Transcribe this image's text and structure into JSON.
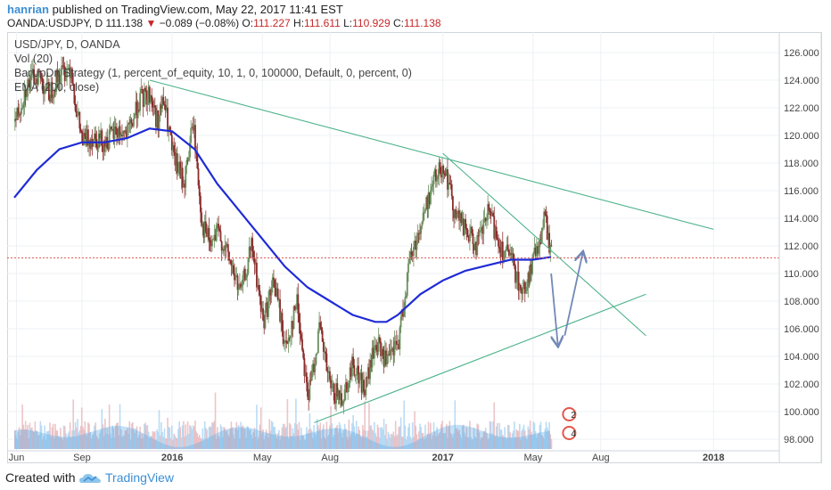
{
  "header": {
    "author": "hanrian",
    "published_text": "published on TradingView.com, May 22, 2017 11:41 EST",
    "symbol": "OANDA:USDJPY, D",
    "last": "111.138",
    "change_arrow": "▼",
    "change": "−0.089 (−0.08%)",
    "o_label": "O:",
    "o_value": "111.227",
    "h_label": "H:",
    "h_value": "111.611",
    "l_label": "L:",
    "l_value": "110.929",
    "c_label": "C:",
    "c_value": "111.138"
  },
  "footer": {
    "created_with": "Created with",
    "brand": "TradingView",
    "brand_icon": "tradingview-cloud-icon"
  },
  "chart_data": {
    "type": "candlestick",
    "legend": [
      "USD/JPY, D, OANDA",
      "Vol (20)",
      "BarUpDn Strategy (1, percent_of_equity, 10, 1, 0, 100000, Default, 0, percent, 0)",
      "EMA (200, close)"
    ],
    "y_axis": {
      "min": 97,
      "max": 127,
      "ticks": [
        "98.000",
        "100.000",
        "102.000",
        "104.000",
        "106.000",
        "108.000",
        "110.000",
        "112.000",
        "114.000",
        "116.000",
        "118.000",
        "120.000",
        "122.000",
        "124.000",
        "126.000"
      ]
    },
    "x_axis": {
      "start_month": 6,
      "end_month": 31,
      "ticks": [
        {
          "label": "Jun",
          "month": 6.1
        },
        {
          "label": "Sep",
          "month": 9
        },
        {
          "label": "2016",
          "month": 13
        },
        {
          "label": "May",
          "month": 17
        },
        {
          "label": "Aug",
          "month": 20
        },
        {
          "label": "2017",
          "month": 25
        },
        {
          "label": "May",
          "month": 29
        },
        {
          "label": "Aug",
          "month": 32
        },
        {
          "label": "2018",
          "month": 37
        }
      ]
    },
    "last_price": 111.138,
    "last_price_label": "111.138",
    "price_path": [
      [
        6.0,
        121.0
      ],
      [
        6.5,
        123.5
      ],
      [
        7.0,
        124.5
      ],
      [
        7.5,
        123.0
      ],
      [
        8.0,
        124.5
      ],
      [
        8.5,
        125.0
      ],
      [
        8.7,
        122.0
      ],
      [
        9.0,
        119.5
      ],
      [
        9.5,
        120.0
      ],
      [
        10.0,
        119.5
      ],
      [
        10.5,
        120.3
      ],
      [
        11.0,
        120.0
      ],
      [
        11.5,
        122.5
      ],
      [
        12.0,
        123.0
      ],
      [
        12.3,
        121.0
      ],
      [
        12.6,
        122.5
      ],
      [
        13.0,
        118.5
      ],
      [
        13.5,
        116.5
      ],
      [
        13.9,
        121.0
      ],
      [
        14.3,
        113.5
      ],
      [
        14.7,
        112.0
      ],
      [
        15.0,
        113.0
      ],
      [
        15.5,
        111.0
      ],
      [
        16.0,
        108.5
      ],
      [
        16.5,
        112.0
      ],
      [
        17.0,
        106.5
      ],
      [
        17.5,
        109.5
      ],
      [
        18.0,
        104.5
      ],
      [
        18.5,
        108.0
      ],
      [
        19.0,
        101.0
      ],
      [
        19.5,
        106.0
      ],
      [
        20.0,
        101.5
      ],
      [
        20.5,
        101.0
      ],
      [
        21.0,
        103.5
      ],
      [
        21.5,
        101.5
      ],
      [
        22.0,
        105.0
      ],
      [
        22.5,
        103.5
      ],
      [
        23.0,
        105.0
      ],
      [
        23.5,
        111.0
      ],
      [
        24.0,
        113.5
      ],
      [
        24.5,
        116.5
      ],
      [
        25.0,
        118.0
      ],
      [
        25.5,
        114.5
      ],
      [
        26.0,
        113.0
      ],
      [
        26.5,
        112.0
      ],
      [
        27.0,
        114.5
      ],
      [
        27.5,
        112.0
      ],
      [
        28.0,
        111.0
      ],
      [
        28.5,
        108.5
      ],
      [
        29.0,
        111.0
      ],
      [
        29.5,
        114.0
      ],
      [
        29.8,
        111.0
      ]
    ],
    "ema_path": [
      [
        6.0,
        115.5
      ],
      [
        7.0,
        117.5
      ],
      [
        8.0,
        119.0
      ],
      [
        9.0,
        119.5
      ],
      [
        10.0,
        119.5
      ],
      [
        11.0,
        119.8
      ],
      [
        12.0,
        120.5
      ],
      [
        13.0,
        120.3
      ],
      [
        14.0,
        119.0
      ],
      [
        15.0,
        116.5
      ],
      [
        16.0,
        114.5
      ],
      [
        17.0,
        112.5
      ],
      [
        18.0,
        110.5
      ],
      [
        19.0,
        109.0
      ],
      [
        20.0,
        108.0
      ],
      [
        21.0,
        107.0
      ],
      [
        22.0,
        106.5
      ],
      [
        22.5,
        106.5
      ],
      [
        23.0,
        107.0
      ],
      [
        24.0,
        108.5
      ],
      [
        25.0,
        109.5
      ],
      [
        26.0,
        110.2
      ],
      [
        27.0,
        110.6
      ],
      [
        28.0,
        111.0
      ],
      [
        29.0,
        111.0
      ],
      [
        29.8,
        111.2
      ]
    ],
    "trendlines": [
      {
        "name": "upper-resistance",
        "from": [
          12.0,
          124.0
        ],
        "to": [
          37.0,
          113.2
        ]
      },
      {
        "name": "short-resistance",
        "from": [
          25.0,
          118.7
        ],
        "to": [
          34.0,
          105.5
        ]
      },
      {
        "name": "support",
        "from": [
          19.3,
          99.2
        ],
        "to": [
          34.0,
          108.5
        ]
      }
    ],
    "projection_arrows": [
      {
        "from": [
          29.8,
          110.0
        ],
        "to": [
          30.1,
          104.8
        ]
      },
      {
        "from": [
          30.4,
          105.5
        ],
        "to": [
          31.2,
          111.5
        ]
      }
    ],
    "volume_note": "Vol (20)",
    "strategy_marks": [
      "2",
      "4"
    ]
  }
}
